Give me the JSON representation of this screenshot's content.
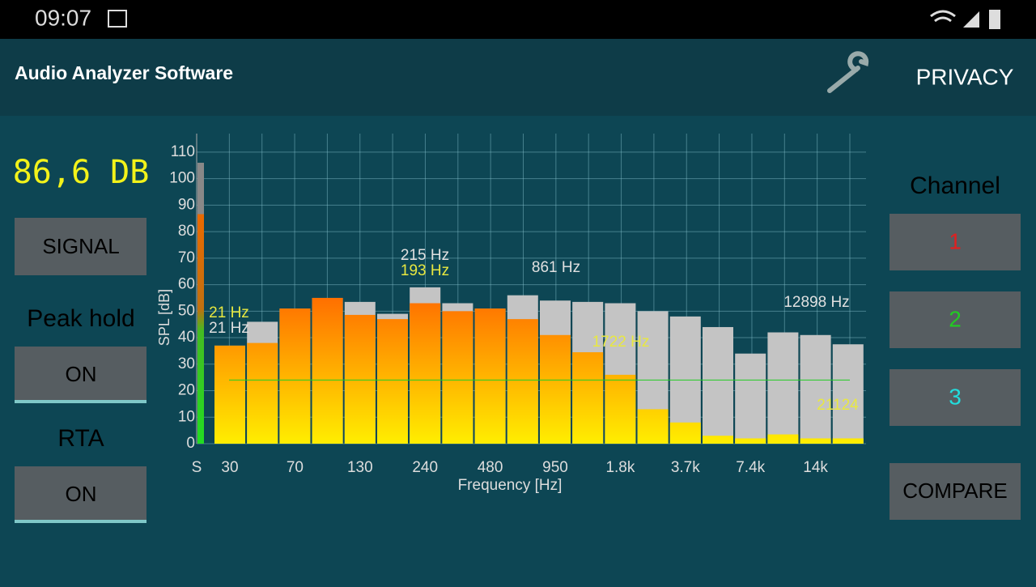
{
  "status_bar": {
    "time": "09:07"
  },
  "header": {
    "title": "Audio Analyzer Software",
    "privacy": "PRIVACY"
  },
  "left_panel": {
    "level": "86,6 DB",
    "signal_button": "SIGNAL",
    "peak_hold_label": "Peak hold",
    "peak_hold_button": "ON",
    "rta_label": "RTA",
    "rta_button": "ON"
  },
  "right_panel": {
    "channel_label": "Channel",
    "channels": [
      "1",
      "2",
      "3"
    ],
    "compare_button": "COMPARE"
  },
  "chart_data": {
    "type": "bar",
    "x_label": "Frequency [Hz]",
    "y_label": "SPL [dB]",
    "categories": [
      "30",
      null,
      "70",
      null,
      "130",
      null,
      "240",
      null,
      "480",
      null,
      "950",
      null,
      "1.8k",
      null,
      "3.7k",
      null,
      "7.4k",
      null,
      "14k",
      null
    ],
    "series": [
      {
        "color": "#c4c4c4",
        "values": [
          37,
          46,
          51,
          55,
          53.5,
          49,
          59,
          53,
          51,
          56,
          54,
          53.5,
          53,
          50,
          48,
          44,
          34,
          42,
          41,
          37.5
        ]
      },
      {
        "color": "#ff6a00",
        "values": [
          37,
          38,
          51,
          55,
          48.6,
          47,
          53,
          50,
          51,
          47,
          41,
          34.5,
          26,
          13,
          8,
          3,
          2,
          3.5,
          2,
          2
        ]
      }
    ],
    "signal_meter": {
      "label": "S",
      "peak": 106,
      "level": 86.6
    },
    "reference_line": 24,
    "annotations": [
      {
        "text": "215 Hz",
        "color": "#e0e0e0"
      },
      {
        "text": "193 Hz",
        "color": "#e8e840"
      },
      {
        "text": "861 Hz",
        "color": "#e0e0e0"
      },
      {
        "text": "12898 Hz",
        "color": "#e0e0e0"
      },
      {
        "text": "21 Hz",
        "color": "#e8e840"
      },
      {
        "text": "21 Hz",
        "color": "#e0e0e0"
      },
      {
        "text": "1722 Hz",
        "color": "#e8e840"
      },
      {
        "text": "21124",
        "color": "#e8e840"
      }
    ],
    "ylim": [
      0,
      117
    ],
    "yticks": [
      0,
      10,
      20,
      30,
      40,
      50,
      60,
      70,
      80,
      90,
      100,
      110
    ],
    "grid": true
  }
}
